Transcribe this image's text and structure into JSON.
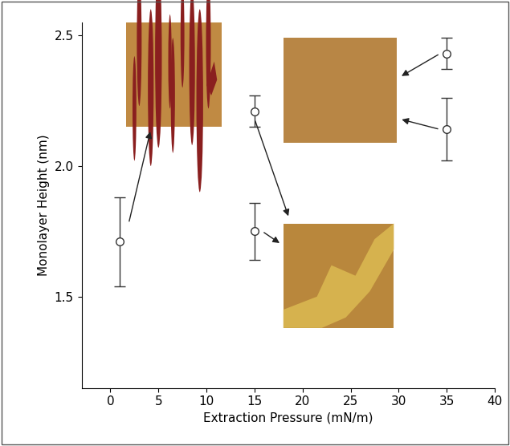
{
  "chart_data": {
    "type": "scatter",
    "x_label": "Extraction Pressure (mN/m)",
    "y_label": "Monolayer Height (nm)",
    "x": [
      1,
      15,
      15,
      35,
      35
    ],
    "values": [
      1.71,
      2.21,
      1.75,
      2.43,
      2.14
    ],
    "errors": [
      0.17,
      0.06,
      0.11,
      0.06,
      0.12
    ],
    "marker": "o",
    "color": "#333333",
    "xlim": [
      -3,
      40
    ],
    "xticks": [
      0,
      5,
      10,
      15,
      20,
      25,
      30,
      35,
      40
    ],
    "ylim": [
      1.15,
      2.55
    ],
    "yticks": [
      1.5,
      2.0,
      2.5
    ],
    "grid": false
  }
}
